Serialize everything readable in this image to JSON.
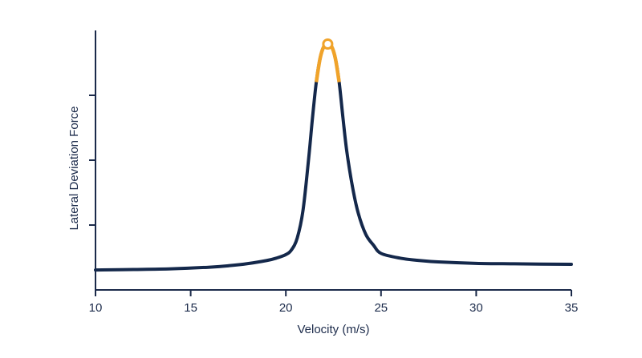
{
  "chart_data": {
    "type": "line",
    "title": "",
    "xlabel": "Velocity (m/s)",
    "ylabel": "Lateral Deviation Force",
    "xlim": [
      10,
      35
    ],
    "x_ticks": [
      10,
      15,
      20,
      25,
      30,
      35
    ],
    "y_ticks_labeled": false,
    "y_tick_count": 3,
    "grid": false,
    "legend": "none",
    "series": [
      {
        "x": [
          10,
          12,
          14,
          16,
          17,
          18,
          19,
          19.5,
          20,
          20.3,
          20.6,
          20.9,
          21.2,
          21.4,
          21.6,
          21.8,
          22,
          22.2,
          22.4,
          22.6,
          22.8,
          23,
          23.2,
          23.5,
          23.8,
          24.2,
          24.6,
          25,
          26,
          27,
          28,
          30,
          32,
          35
        ],
        "y": [
          0.05,
          0.052,
          0.055,
          0.062,
          0.068,
          0.077,
          0.09,
          0.1,
          0.115,
          0.135,
          0.185,
          0.3,
          0.52,
          0.69,
          0.84,
          0.94,
          0.99,
          1.0,
          0.99,
          0.94,
          0.84,
          0.69,
          0.55,
          0.4,
          0.29,
          0.2,
          0.155,
          0.12,
          0.1,
          0.09,
          0.084,
          0.078,
          0.076,
          0.074
        ],
        "color": "#14284b"
      }
    ],
    "highlight": {
      "x_range": [
        21.6,
        22.8
      ],
      "color": "#f0a32a",
      "peak_x": 22.2,
      "peak_y": 1.0
    },
    "colors": {
      "axis": "#1b2a4a",
      "line": "#14284b",
      "highlight": "#f0a32a"
    }
  }
}
